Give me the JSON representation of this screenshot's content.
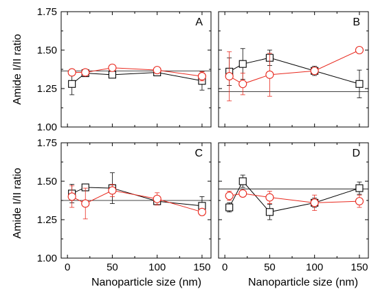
{
  "chart_data": {
    "type": "line",
    "ylabel": "Amide I/II ratio",
    "xlabel": "Nanoparticle size (nm)",
    "x": [
      5,
      20,
      50,
      100,
      150
    ],
    "xlim": [
      -7,
      160
    ],
    "ylim": [
      1.0,
      1.75
    ],
    "y_ticks": [
      "1.00",
      "1.25",
      "1.50",
      "1.75"
    ],
    "x_ticks": [
      "0",
      "50",
      "100",
      "150"
    ],
    "series_styles": [
      {
        "marker": "square",
        "color": "#000000"
      },
      {
        "marker": "circle",
        "color": "#e8271c"
      }
    ],
    "panels": [
      {
        "label": "A",
        "reference": 1.365,
        "series": [
          {
            "values": [
              1.28,
              1.35,
              1.34,
              1.355,
              1.3
            ],
            "errors": [
              0.07,
              0.02,
              0.02,
              0.02,
              0.06
            ]
          },
          {
            "values": [
              1.355,
              1.355,
              1.385,
              1.37,
              1.33
            ],
            "errors": [
              0.02,
              0.02,
              0.02,
              0.02,
              0.03
            ]
          }
        ]
      },
      {
        "label": "B",
        "reference": 1.23,
        "series": [
          {
            "values": [
              1.36,
              1.41,
              1.45,
              1.365,
              1.28
            ],
            "errors": [
              0.09,
              0.1,
              0.05,
              0.03,
              0.09
            ]
          },
          {
            "values": [
              1.33,
              1.28,
              1.34,
              1.365,
              1.5
            ],
            "errors": [
              0.16,
              0.07,
              0.14,
              0.02,
              0.01
            ]
          }
        ]
      },
      {
        "label": "C",
        "reference": 1.375,
        "series": [
          {
            "values": [
              1.42,
              1.46,
              1.455,
              1.37,
              1.34
            ],
            "errors": [
              0.06,
              0.02,
              0.1,
              0.02,
              0.06
            ]
          },
          {
            "values": [
              1.4,
              1.355,
              1.44,
              1.385,
              1.3
            ],
            "errors": [
              0.07,
              0.1,
              0.04,
              0.04,
              0.02
            ]
          }
        ]
      },
      {
        "label": "D",
        "reference": 1.45,
        "series": [
          {
            "values": [
              1.33,
              1.5,
              1.3,
              1.36,
              1.455
            ],
            "errors": [
              0.03,
              0.04,
              0.05,
              0.03,
              0.04
            ]
          },
          {
            "values": [
              1.405,
              1.42,
              1.395,
              1.36,
              1.37
            ],
            "errors": [
              0.03,
              0.02,
              0.04,
              0.05,
              0.04
            ]
          }
        ]
      }
    ]
  }
}
